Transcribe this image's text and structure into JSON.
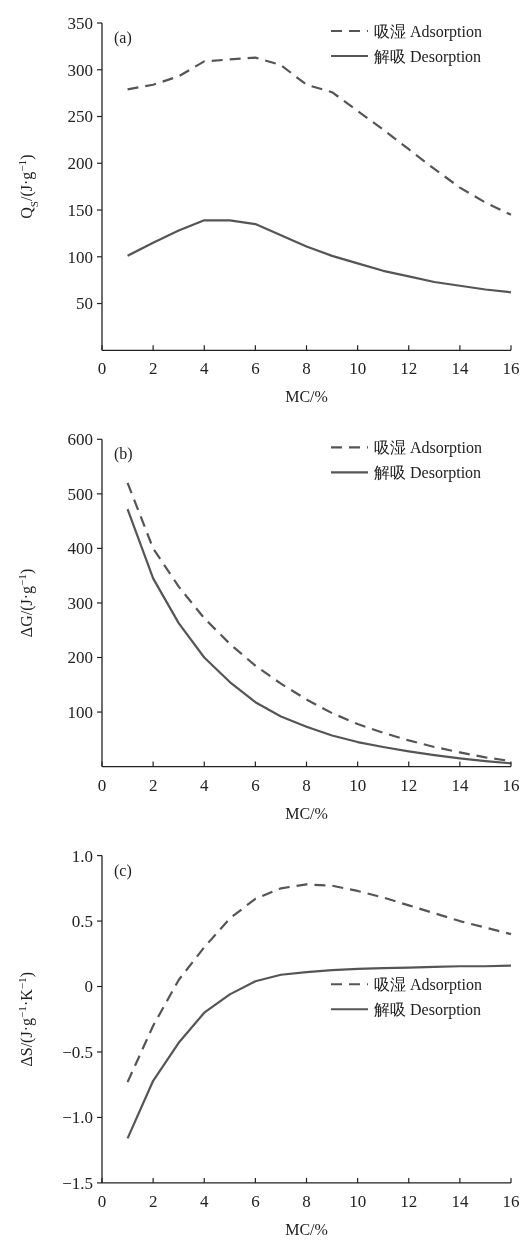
{
  "chart_data": [
    {
      "type": "line",
      "xlabel": "MC/%",
      "ylabel": "Q$_{S}$/(J·g$^{−1}$)",
      "annotations": [
        "(a)"
      ],
      "legend": "top right",
      "x": [
        1,
        2,
        3,
        4,
        5,
        6,
        7,
        8,
        9,
        10,
        11,
        12,
        13,
        14,
        15,
        16
      ],
      "xlim": [
        0,
        16
      ],
      "xticks": [
        0,
        2,
        4,
        6,
        8,
        10,
        12,
        14,
        16
      ],
      "ylim": [
        0,
        350
      ],
      "yticks": [
        50,
        100,
        150,
        200,
        250,
        300,
        350
      ],
      "series": [
        {
          "name": "吸湿 Adsorption",
          "color": "#555555",
          "line_style": "dashed",
          "values": [
            279,
            284,
            293,
            309,
            311,
            313,
            305,
            284,
            276,
            256,
            236,
            215,
            194,
            174,
            158,
            145
          ]
        },
        {
          "name": "解吸 Desorption",
          "color": "#555555",
          "line_style": "solid",
          "values": [
            101,
            115,
            128,
            139,
            139,
            135,
            123,
            111,
            101,
            93,
            85,
            79,
            73,
            69,
            65,
            62
          ]
        }
      ]
    },
    {
      "type": "line",
      "xlabel": "MC/%",
      "ylabel": "ΔG/(J·g$^{−1}$)",
      "annotations": [
        "(b)"
      ],
      "legend": "top right",
      "x": [
        1,
        2,
        3,
        4,
        5,
        6,
        7,
        8,
        9,
        10,
        11,
        12,
        13,
        14,
        15,
        16
      ],
      "xlim": [
        0,
        16
      ],
      "xticks": [
        0,
        2,
        4,
        6,
        8,
        10,
        12,
        14,
        16
      ],
      "ylim": [
        0,
        600
      ],
      "yticks": [
        100,
        200,
        300,
        400,
        500,
        600
      ],
      "series": [
        {
          "name": "吸湿 Adsorption",
          "color": "#555555",
          "line_style": "dashed",
          "values": [
            520,
            400,
            330,
            272,
            225,
            185,
            152,
            123,
            98,
            78,
            62,
            48,
            36,
            26,
            17,
            10
          ]
        },
        {
          "name": "解吸 Desorption",
          "color": "#555555",
          "line_style": "solid",
          "values": [
            472,
            345,
            263,
            200,
            155,
            118,
            92,
            73,
            57,
            45,
            36,
            28,
            21,
            15,
            10,
            6
          ]
        }
      ]
    },
    {
      "type": "line",
      "xlabel": "MC/%",
      "ylabel": "ΔS/(J·g$^{−1}$·K$^{−1}$)",
      "annotations": [
        "(c)"
      ],
      "legend": "right",
      "x": [
        1,
        2,
        3,
        4,
        5,
        6,
        7,
        8,
        9,
        10,
        11,
        12,
        13,
        14,
        15,
        16
      ],
      "xlim": [
        0,
        16
      ],
      "xticks": [
        0,
        2,
        4,
        6,
        8,
        10,
        12,
        14,
        16
      ],
      "ylim": [
        -1.5,
        1.0
      ],
      "yticks": [
        {
          "value": -1.5,
          "label": "−1.5"
        },
        {
          "value": -1.0,
          "label": "−1.0"
        },
        {
          "value": -0.5,
          "label": "−0.5"
        },
        0,
        0.5,
        {
          "value": 1.0,
          "label": "1.0"
        }
      ],
      "series": [
        {
          "name": "吸湿 Adsorption",
          "color": "#555555",
          "line_style": "dashed",
          "values": [
            -0.73,
            -0.3,
            0.05,
            0.3,
            0.52,
            0.67,
            0.75,
            0.78,
            0.77,
            0.73,
            0.68,
            0.62,
            0.56,
            0.5,
            0.45,
            0.4
          ]
        },
        {
          "name": "解吸 Desorption",
          "color": "#555555",
          "line_style": "solid",
          "values": [
            -1.16,
            -0.72,
            -0.43,
            -0.2,
            -0.06,
            0.04,
            0.09,
            0.11,
            0.125,
            0.135,
            0.14,
            0.145,
            0.15,
            0.155,
            0.155,
            0.16
          ]
        }
      ]
    }
  ]
}
